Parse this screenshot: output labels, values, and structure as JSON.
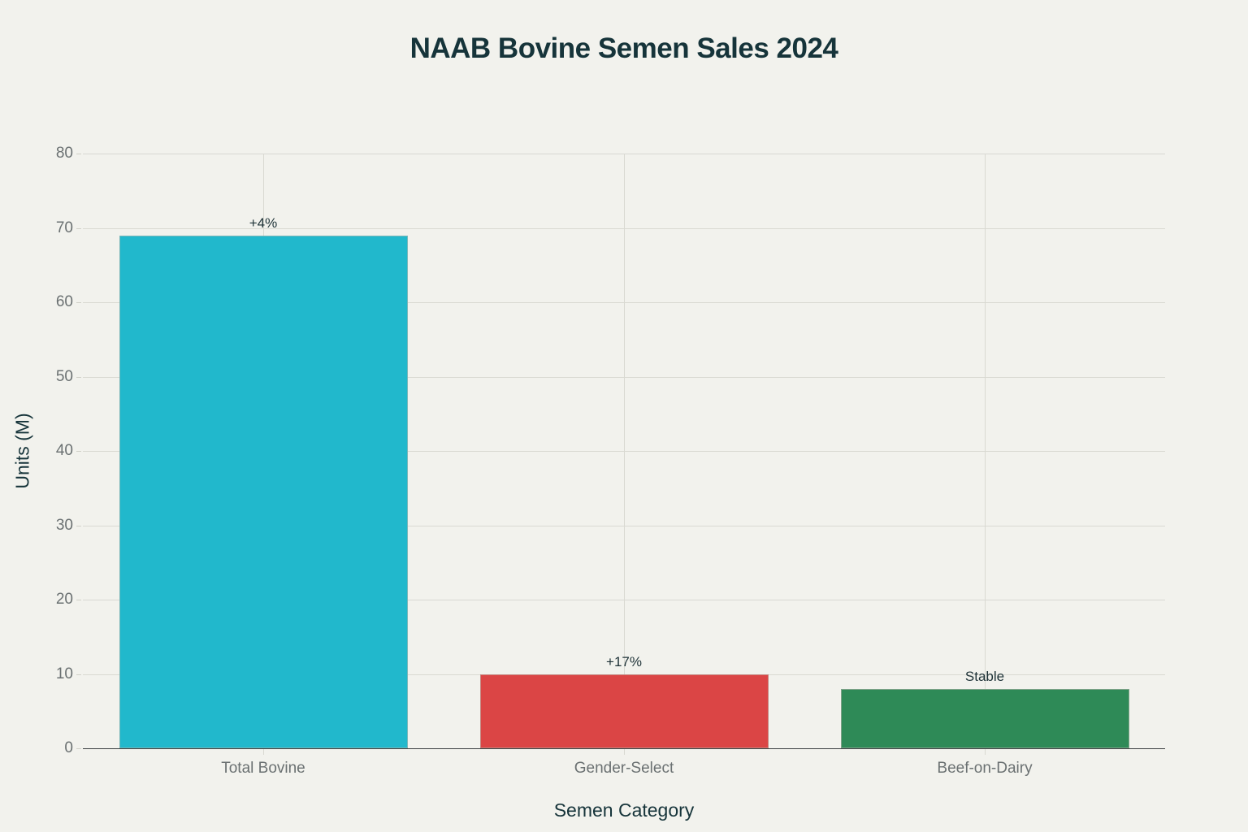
{
  "chart_data": {
    "type": "bar",
    "title": "NAAB Bovine Semen Sales 2024",
    "xlabel": "Semen Category",
    "ylabel": "Units (M)",
    "categories": [
      "Total Bovine",
      "Gender-Select",
      "Beef-on-Dairy"
    ],
    "values": [
      69,
      10,
      8
    ],
    "annotations": [
      "+4%",
      "+17%",
      "Stable"
    ],
    "colors": [
      "#21b8cc",
      "#db4545",
      "#2e8a57"
    ],
    "ylim": [
      0,
      80
    ],
    "yticks": [
      0,
      10,
      20,
      30,
      40,
      50,
      60,
      70,
      80
    ],
    "grid": true,
    "legend": null
  }
}
